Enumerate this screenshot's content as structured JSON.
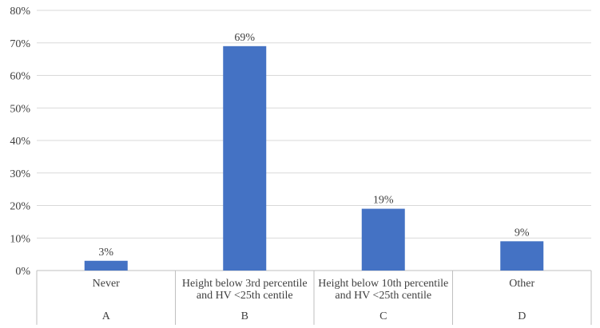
{
  "chart_data": {
    "type": "bar",
    "categories": [
      "Never",
      "Height below 3rd percentile and HV <25th centile",
      "Height below 10th percentile and HV <25th centile",
      "Other"
    ],
    "category_lines": [
      [
        "Never"
      ],
      [
        "Height below 3rd percentile",
        "and HV <25th centile"
      ],
      [
        "Height below 10th percentile",
        "and HV <25th centile"
      ],
      [
        "Other"
      ]
    ],
    "group_labels": [
      "A",
      "B",
      "C",
      "D"
    ],
    "values": [
      3,
      69,
      19,
      9
    ],
    "data_labels": [
      "3%",
      "69%",
      "19%",
      "9%"
    ],
    "title": "",
    "xlabel": "",
    "ylabel": "",
    "ylim": [
      0,
      80
    ],
    "y_ticks": [
      0,
      10,
      20,
      30,
      40,
      50,
      60,
      70,
      80
    ],
    "y_tick_labels": [
      "0%",
      "10%",
      "20%",
      "30%",
      "40%",
      "50%",
      "60%",
      "70%",
      "80%"
    ],
    "grid": true,
    "legend": "none",
    "colors": {
      "bar": "#4472C4",
      "grid": "#D9D9D9",
      "text": "#404040"
    }
  }
}
